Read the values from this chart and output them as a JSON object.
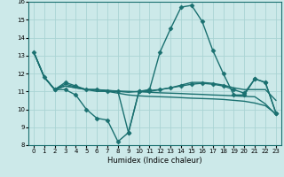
{
  "xlabel": "Humidex (Indice chaleur)",
  "xlim": [
    -0.5,
    23.5
  ],
  "ylim": [
    8,
    16
  ],
  "yticks": [
    8,
    9,
    10,
    11,
    12,
    13,
    14,
    15,
    16
  ],
  "xticks": [
    0,
    1,
    2,
    3,
    4,
    5,
    6,
    7,
    8,
    9,
    10,
    11,
    12,
    13,
    14,
    15,
    16,
    17,
    18,
    19,
    20,
    21,
    22,
    23
  ],
  "bg_color": "#cce9e9",
  "line_color": "#1a7070",
  "grid_color": "#aad4d4",
  "lines": [
    {
      "x": [
        0,
        1,
        2,
        3,
        4,
        5,
        6,
        7,
        8,
        9,
        10,
        11,
        12,
        13,
        14,
        15,
        16,
        17,
        18,
        19,
        20,
        21,
        22,
        23
      ],
      "y": [
        13.2,
        11.8,
        11.1,
        11.1,
        10.8,
        10.0,
        9.5,
        9.4,
        8.2,
        8.7,
        11.0,
        11.1,
        13.2,
        14.5,
        15.7,
        15.8,
        14.9,
        13.3,
        12.0,
        10.8,
        10.8,
        11.7,
        11.5,
        9.8
      ],
      "marker": "D",
      "markersize": 2.5,
      "linewidth": 1.0
    },
    {
      "x": [
        0,
        1,
        2,
        3,
        4,
        5,
        6,
        7,
        8,
        9,
        10,
        11,
        12,
        13,
        14,
        15,
        16,
        17,
        18,
        19,
        20,
        21,
        22,
        23
      ],
      "y": [
        13.2,
        11.8,
        11.1,
        11.3,
        11.2,
        11.1,
        11.1,
        11.05,
        11.0,
        10.95,
        11.0,
        11.05,
        11.1,
        11.2,
        11.35,
        11.5,
        11.5,
        11.45,
        11.35,
        11.2,
        11.1,
        11.1,
        11.1,
        10.5
      ],
      "marker": null,
      "markersize": 0,
      "linewidth": 1.0
    },
    {
      "x": [
        0,
        1,
        2,
        3,
        4,
        5,
        6,
        7,
        8,
        9,
        10,
        11,
        12,
        13,
        14,
        15,
        16,
        17,
        18,
        19,
        20,
        21,
        22,
        23
      ],
      "y": [
        13.2,
        11.8,
        11.1,
        11.3,
        11.2,
        11.1,
        11.0,
        11.0,
        10.9,
        10.8,
        10.75,
        10.72,
        10.7,
        10.68,
        10.65,
        10.62,
        10.6,
        10.58,
        10.55,
        10.5,
        10.45,
        10.35,
        10.2,
        9.75
      ],
      "marker": null,
      "markersize": 0,
      "linewidth": 1.0
    },
    {
      "x": [
        2,
        3,
        4,
        5,
        6,
        7,
        8,
        9,
        10,
        11,
        12,
        13,
        14,
        15,
        16,
        17,
        18,
        19,
        20,
        21,
        22,
        23
      ],
      "y": [
        11.1,
        11.5,
        11.3,
        11.1,
        11.1,
        11.0,
        11.0,
        8.7,
        11.0,
        11.0,
        11.1,
        11.2,
        11.3,
        11.4,
        11.45,
        11.4,
        11.3,
        11.1,
        10.9,
        11.7,
        11.5,
        9.8
      ],
      "marker": "D",
      "markersize": 2.5,
      "linewidth": 1.0
    },
    {
      "x": [
        0,
        1,
        2,
        3,
        4,
        5,
        6,
        7,
        8,
        9,
        10,
        11,
        12,
        13,
        14,
        15,
        16,
        17,
        18,
        19,
        20,
        21,
        22,
        23
      ],
      "y": [
        13.2,
        11.8,
        11.1,
        11.4,
        11.25,
        11.1,
        11.08,
        11.05,
        11.02,
        11.0,
        10.98,
        10.95,
        10.92,
        10.9,
        10.88,
        10.85,
        10.83,
        10.8,
        10.78,
        10.75,
        10.72,
        10.7,
        10.3,
        9.7
      ],
      "marker": null,
      "markersize": 0,
      "linewidth": 1.0
    }
  ]
}
